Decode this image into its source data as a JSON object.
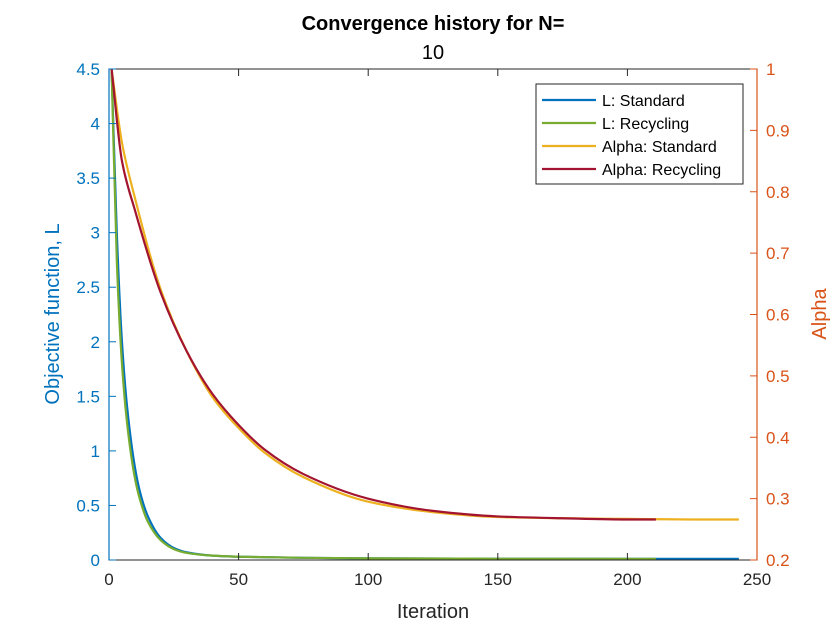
{
  "chart_data": {
    "type": "line",
    "title": "Convergence history for N=",
    "subtitle": "10",
    "xlabel": "Iteration",
    "ylabel_left": "Objective function, L",
    "ylabel_right": "Alpha",
    "xlim": [
      0,
      250
    ],
    "ylim_left": [
      0,
      4.5
    ],
    "ylim_right": [
      0.2,
      1
    ],
    "xticks": [
      0,
      50,
      100,
      150,
      200,
      250
    ],
    "yticks_left": [
      0,
      0.5,
      1,
      1.5,
      2,
      2.5,
      3,
      3.5,
      4,
      4.5
    ],
    "yticks_right": [
      0.2,
      0.3,
      0.4,
      0.5,
      0.6,
      0.7,
      0.8,
      0.9,
      1
    ],
    "grid": false,
    "legend_position": "top-right",
    "colors": {
      "left_axis": "#0072BD",
      "right_axis": "#D95319",
      "axis_black": "#262626"
    },
    "series": [
      {
        "name": "L: Standard",
        "axis": "left",
        "color": "#0072BD",
        "x": [
          1,
          3,
          5,
          7,
          10,
          12,
          15,
          20,
          25,
          30,
          40,
          50,
          75,
          100,
          150,
          200,
          243
        ],
        "y": [
          4.5,
          3.0,
          2.0,
          1.4,
          0.85,
          0.62,
          0.4,
          0.2,
          0.11,
          0.07,
          0.04,
          0.03,
          0.02,
          0.015,
          0.012,
          0.011,
          0.01
        ]
      },
      {
        "name": "L: Recycling",
        "axis": "left",
        "color": "#77AC30",
        "x": [
          1,
          3,
          5,
          7,
          10,
          12,
          15,
          20,
          25,
          30,
          40,
          50,
          75,
          100,
          150,
          200,
          211
        ],
        "y": [
          4.5,
          2.75,
          1.8,
          1.25,
          0.75,
          0.55,
          0.35,
          0.18,
          0.1,
          0.065,
          0.04,
          0.03,
          0.02,
          0.015,
          0.012,
          0.011,
          0.01
        ]
      },
      {
        "name": "Alpha: Standard",
        "axis": "right",
        "color": "#EDB120",
        "x": [
          1,
          5,
          10,
          20,
          30,
          40,
          50,
          60,
          75,
          100,
          125,
          150,
          175,
          200,
          225,
          243
        ],
        "y": [
          1.0,
          0.88,
          0.79,
          0.64,
          0.54,
          0.465,
          0.415,
          0.375,
          0.335,
          0.295,
          0.278,
          0.27,
          0.268,
          0.267,
          0.266,
          0.266
        ]
      },
      {
        "name": "Alpha: Recycling",
        "axis": "right",
        "color": "#A2142F",
        "x": [
          1,
          5,
          10,
          20,
          30,
          40,
          50,
          60,
          75,
          100,
          125,
          150,
          175,
          200,
          211
        ],
        "y": [
          1.0,
          0.85,
          0.77,
          0.635,
          0.54,
          0.47,
          0.42,
          0.38,
          0.34,
          0.3,
          0.28,
          0.271,
          0.268,
          0.266,
          0.266
        ]
      }
    ]
  }
}
